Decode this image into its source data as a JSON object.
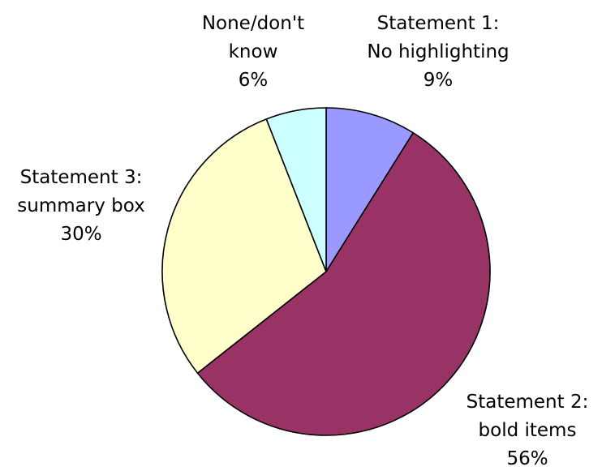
{
  "chart_data": {
    "type": "pie",
    "title": "",
    "series": [
      {
        "values": [
          9,
          56,
          30,
          6
        ],
        "categories": [
          "Statement 1: No highlighting",
          "Statement 2: bold items",
          "Statement 3: summary box",
          "None/don't know"
        ]
      }
    ],
    "slices": [
      {
        "label_lines": [
          "Statement 1:",
          "No highlighting"
        ],
        "value": 9,
        "percent_label": "9%",
        "color": "#9999ff"
      },
      {
        "label_lines": [
          "Statement 2:",
          "bold items"
        ],
        "value": 56,
        "percent_label": "56%",
        "color": "#993366"
      },
      {
        "label_lines": [
          "Statement 3:",
          "summary box"
        ],
        "value": 30,
        "percent_label": "30%",
        "color": "#ffffcc"
      },
      {
        "label_lines": [
          "None/don't",
          "know"
        ],
        "value": 6,
        "percent_label": "6%",
        "color": "#ccffff"
      }
    ],
    "legend": "none",
    "start": "12 o'clock",
    "direction": "clockwise"
  }
}
